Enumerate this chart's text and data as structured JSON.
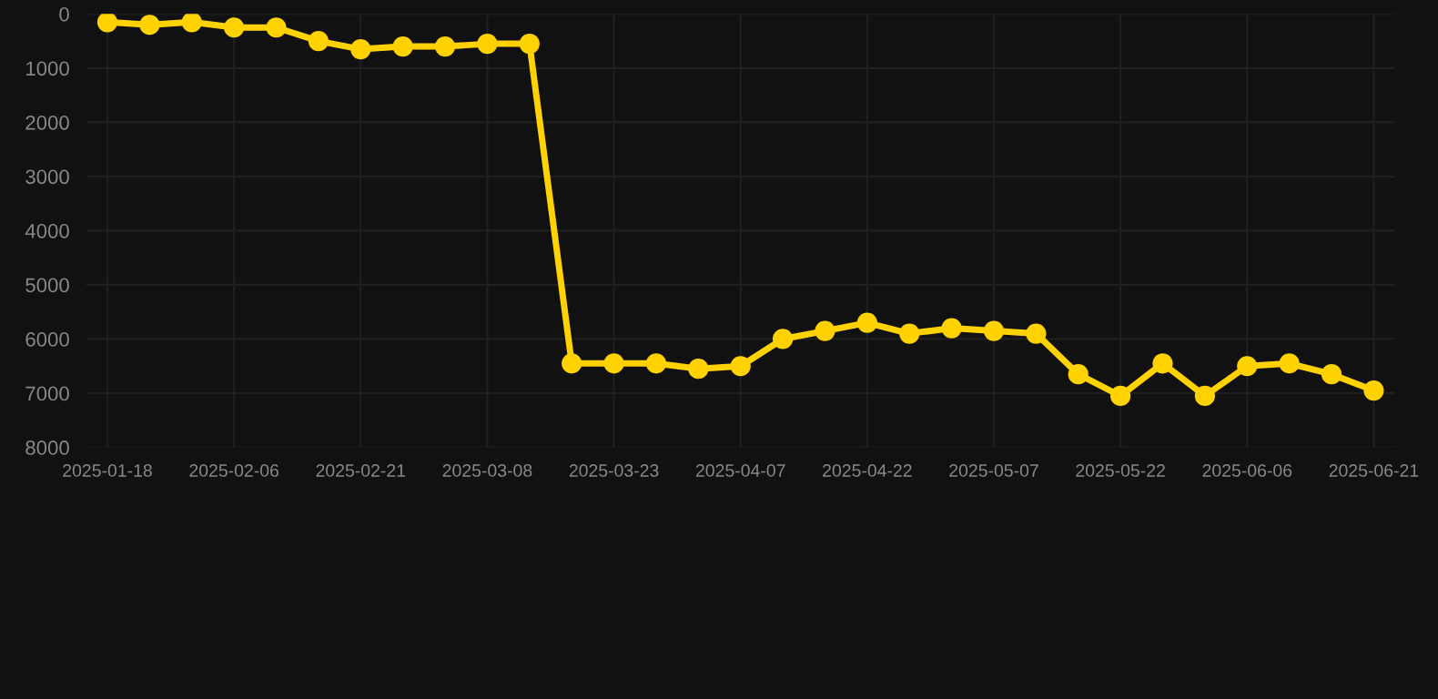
{
  "chart_data": {
    "type": "line",
    "categories": [
      "2025-01-18",
      null,
      null,
      "2025-02-06",
      null,
      null,
      "2025-02-21",
      null,
      null,
      "2025-03-08",
      null,
      null,
      "2025-03-23",
      null,
      null,
      "2025-04-07",
      null,
      null,
      "2025-04-22",
      null,
      null,
      "2025-05-07",
      null,
      null,
      "2025-05-22",
      null,
      null,
      "2025-06-06",
      null,
      null,
      "2025-06-21"
    ],
    "series": [
      {
        "color": "#ffd200",
        "values": [
          150,
          200,
          150,
          250,
          250,
          500,
          650,
          600,
          600,
          550,
          550,
          6450,
          6450,
          6450,
          6550,
          6500,
          6000,
          5850,
          5700,
          5900,
          5800,
          5850,
          5900,
          6650,
          7050,
          6450,
          7050,
          6500,
          6450,
          6650,
          6950
        ]
      }
    ],
    "ylim": [
      8000,
      0
    ],
    "yticks": [
      0,
      1000,
      2000,
      3000,
      4000,
      5000,
      6000,
      7000,
      8000
    ],
    "grid": true,
    "marker": "circle",
    "line_style": "solid"
  }
}
